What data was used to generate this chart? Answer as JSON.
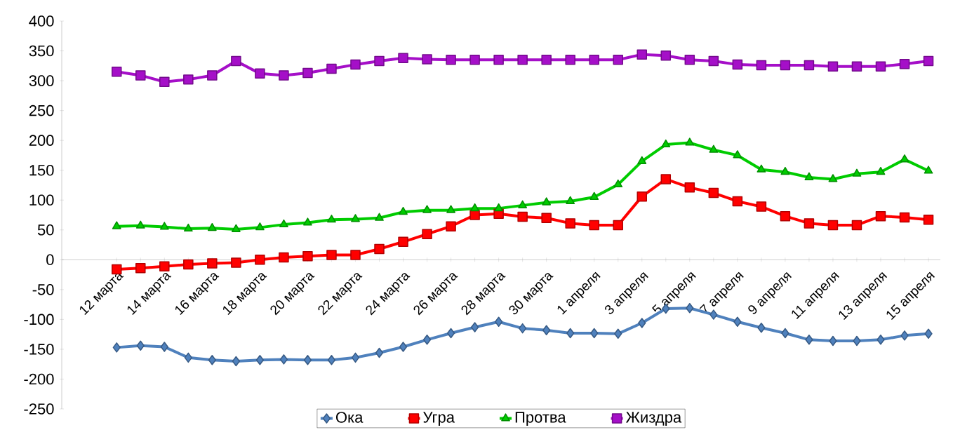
{
  "chart_data": {
    "type": "line",
    "categories": [
      "12 марта",
      null,
      "14 марта",
      null,
      "16 марта",
      null,
      "18 марта",
      null,
      "20 марта",
      null,
      "22 марта",
      null,
      "24 марта",
      null,
      "26 марта",
      null,
      "28 марта",
      null,
      "30 марта",
      null,
      "1 апреля",
      null,
      "3 апреля",
      null,
      "5 апреля",
      null,
      "7 апреля",
      null,
      "9 апреля",
      null,
      "11 апреля",
      null,
      "13 апреля",
      null,
      "15 апреля"
    ],
    "series": [
      {
        "name": "Ока",
        "color": "#4f81bd",
        "marker": "diamond",
        "values": [
          -147,
          -144,
          -146,
          -164,
          -168,
          -170,
          -168,
          -167,
          -168,
          -168,
          -164,
          -156,
          -146,
          -134,
          -123,
          -113,
          -104,
          -115,
          -118,
          -123,
          -123,
          -124,
          -106,
          -82,
          -81,
          -92,
          -104,
          -114,
          -123,
          -134,
          -136,
          -136,
          -134,
          -127,
          -124
        ]
      },
      {
        "name": "Угра",
        "color": "#ff0000",
        "marker": "square",
        "values": [
          -16,
          -14,
          -11,
          -8,
          -6,
          -5,
          0,
          4,
          6,
          8,
          8,
          18,
          30,
          43,
          56,
          75,
          77,
          72,
          70,
          61,
          58,
          58,
          106,
          135,
          121,
          112,
          98,
          89,
          73,
          61,
          58,
          58,
          73,
          71,
          67
        ]
      },
      {
        "name": "Протва",
        "color": "#00cc00",
        "marker": "triangle",
        "values": [
          56,
          57,
          55,
          52,
          53,
          51,
          54,
          59,
          62,
          67,
          68,
          70,
          80,
          83,
          83,
          86,
          86,
          91,
          96,
          98,
          105,
          126,
          165,
          193,
          196,
          184,
          175,
          151,
          147,
          138,
          135,
          144,
          147,
          168,
          149
        ]
      },
      {
        "name": "Жиздра",
        "color": "#a50fc8",
        "marker": "square",
        "values": [
          315,
          309,
          298,
          302,
          309,
          333,
          312,
          309,
          313,
          320,
          327,
          333,
          338,
          336,
          335,
          335,
          335,
          335,
          335,
          335,
          335,
          335,
          344,
          342,
          335,
          333,
          327,
          326,
          326,
          326,
          324,
          324,
          324,
          328,
          333
        ]
      }
    ],
    "ylim": [
      -250,
      400
    ],
    "yticks": [
      -250,
      -200,
      -150,
      -100,
      -50,
      0,
      50,
      100,
      150,
      200,
      250,
      300,
      350,
      400
    ],
    "grid": false,
    "legend": "bottom",
    "line_style": "solid"
  }
}
